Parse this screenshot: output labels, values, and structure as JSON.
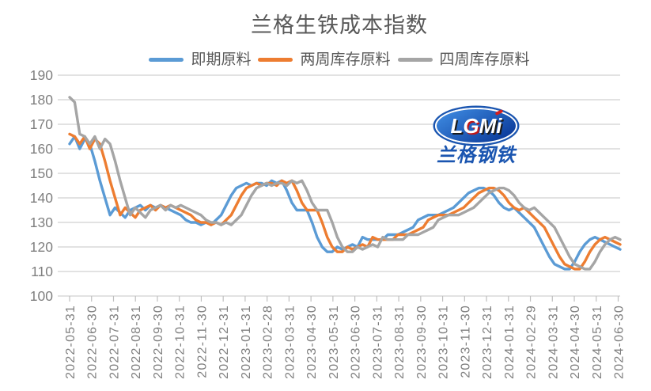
{
  "title": "兰格生铁成本指数",
  "logo": {
    "l1": "L",
    "l2": "G",
    "l3": "Mi",
    "sub": "兰格钢铁"
  },
  "chart_data": {
    "type": "line",
    "title": "兰格生铁成本指数",
    "xlabel": "",
    "ylabel": "",
    "ylim": [
      100,
      190
    ],
    "y_ticks": [
      190,
      180,
      170,
      160,
      150,
      140,
      130,
      120,
      110,
      100
    ],
    "grid": "horizontal",
    "legend_position": "top",
    "x_note": "weekly data points, monthly tick labels",
    "x_tick_labels": [
      "2022-05-31",
      "2022-06-30",
      "2022-07-31",
      "2022-08-31",
      "2022-09-30",
      "2022-10-31",
      "2022-11-30",
      "2022-12-31",
      "2023-01-31",
      "2023-02-28",
      "2023-03-31",
      "2023-04-30",
      "2023-05-31",
      "2023-06-30",
      "2023-07-31",
      "2023-08-31",
      "2023-09-30",
      "2023-10-31",
      "2023-11-30",
      "2023-12-31",
      "2024-01-31",
      "2024-02-29",
      "2024-03-31",
      "2024-04-30",
      "2024-05-31",
      "2024-06-30"
    ],
    "series": [
      {
        "name": "即期原料",
        "color": "#5B9BD5",
        "values": [
          162,
          165,
          160,
          164,
          162,
          155,
          147,
          140,
          133,
          136,
          134,
          132,
          135,
          136,
          137,
          135,
          137,
          136,
          137,
          136,
          135,
          134,
          133,
          131,
          130,
          130,
          129,
          130,
          129,
          131,
          133,
          137,
          141,
          144,
          145,
          146,
          145,
          146,
          146,
          145,
          147,
          146,
          147,
          143,
          138,
          135,
          135,
          135,
          130,
          124,
          120,
          118,
          118,
          120,
          119,
          120,
          121,
          120,
          124,
          123,
          123,
          123,
          123,
          125,
          125,
          125,
          126,
          127,
          128,
          131,
          132,
          133,
          133,
          133,
          134,
          135,
          136,
          138,
          140,
          142,
          143,
          144,
          144,
          143,
          141,
          138,
          136,
          135,
          136,
          134,
          132,
          130,
          128,
          124,
          120,
          116,
          113,
          112,
          111,
          111,
          114,
          118,
          121,
          123,
          124,
          123,
          122,
          121,
          120,
          119
        ]
      },
      {
        "name": "两周库存原料",
        "color": "#ED7D31",
        "values": [
          166,
          165,
          162,
          165,
          160,
          164,
          162,
          155,
          147,
          140,
          133,
          136,
          134,
          132,
          135,
          136,
          137,
          135,
          137,
          136,
          137,
          136,
          135,
          134,
          133,
          131,
          130,
          130,
          129,
          130,
          129,
          131,
          133,
          137,
          141,
          144,
          145,
          146,
          145,
          146,
          146,
          145,
          147,
          146,
          147,
          143,
          138,
          135,
          135,
          135,
          130,
          124,
          120,
          118,
          118,
          120,
          119,
          120,
          121,
          120,
          124,
          123,
          123,
          123,
          123,
          125,
          125,
          125,
          126,
          127,
          128,
          131,
          132,
          133,
          133,
          133,
          134,
          135,
          136,
          138,
          140,
          142,
          143,
          144,
          144,
          143,
          141,
          138,
          136,
          135,
          136,
          134,
          132,
          130,
          128,
          124,
          120,
          116,
          113,
          112,
          111,
          111,
          114,
          118,
          121,
          123,
          124,
          123,
          122,
          121
        ]
      },
      {
        "name": "四周库存原料",
        "color": "#A5A5A5",
        "values": [
          181,
          179,
          166,
          165,
          162,
          165,
          160,
          164,
          162,
          155,
          147,
          140,
          133,
          136,
          134,
          132,
          135,
          136,
          137,
          135,
          137,
          136,
          137,
          136,
          135,
          134,
          133,
          131,
          130,
          130,
          129,
          130,
          129,
          131,
          133,
          137,
          141,
          144,
          145,
          146,
          145,
          146,
          146,
          145,
          147,
          146,
          147,
          143,
          138,
          135,
          135,
          135,
          130,
          124,
          120,
          118,
          118,
          120,
          119,
          120,
          121,
          120,
          124,
          123,
          123,
          123,
          123,
          125,
          125,
          125,
          126,
          127,
          128,
          131,
          132,
          133,
          133,
          133,
          134,
          135,
          136,
          138,
          140,
          142,
          143,
          144,
          144,
          143,
          141,
          138,
          136,
          135,
          136,
          134,
          132,
          130,
          128,
          124,
          120,
          116,
          113,
          112,
          111,
          111,
          114,
          118,
          121,
          123,
          124,
          123
        ]
      }
    ],
    "colors": {
      "grid": "#D9D9D9",
      "axis_labels": "#7f7f7f",
      "ticks": "#BFBFBF",
      "title": "#595959"
    }
  }
}
